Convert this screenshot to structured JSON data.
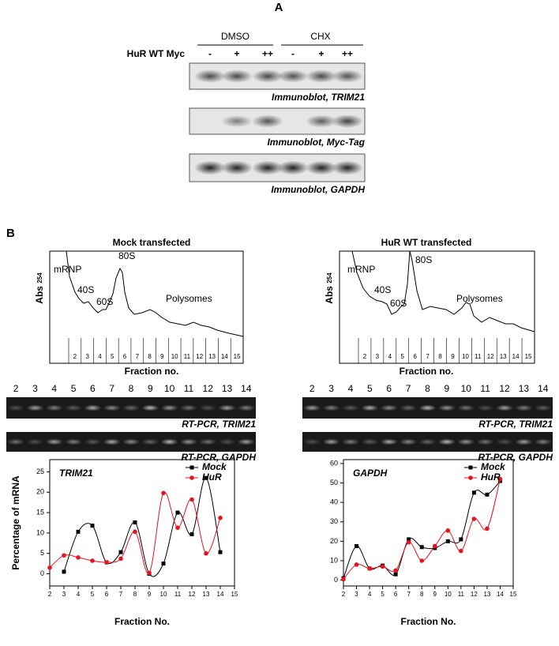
{
  "panel_a": {
    "label": "A",
    "groups": [
      "DMSO",
      "CHX"
    ],
    "row_label": "HuR WT Myc",
    "lanes": [
      "-",
      "+",
      "++",
      "-",
      "+",
      "++"
    ],
    "blots": [
      "Immunoblot, TRIM21",
      "Immunoblot, Myc-Tag",
      "Immunoblot, GAPDH"
    ]
  },
  "panel_b": {
    "label": "B",
    "profiles": [
      {
        "title": "Mock transfected",
        "y_label": "Abs",
        "y_sub": "254",
        "x_label": "Fraction no.",
        "peaks": [
          "mRNP",
          "40S",
          "60S",
          "80S",
          "Polysomes"
        ],
        "fractions": [
          2,
          3,
          4,
          5,
          6,
          7,
          8,
          9,
          10,
          11,
          12,
          13,
          14,
          15
        ]
      },
      {
        "title": "HuR WT transfected",
        "y_label": "Abs",
        "y_sub": "254",
        "x_label": "Fraction no.",
        "peaks": [
          "mRNP",
          "40S",
          "60S",
          "80S",
          "Polysomes"
        ],
        "fractions": [
          2,
          3,
          4,
          5,
          6,
          7,
          8,
          9,
          10,
          11,
          12,
          13,
          14,
          15
        ]
      }
    ],
    "gels": [
      {
        "lanes": [
          2,
          3,
          4,
          5,
          6,
          7,
          8,
          9,
          10,
          11,
          12,
          13,
          14
        ],
        "captions": [
          "RT-PCR, TRIM21",
          "RT-PCR, GAPDH"
        ]
      },
      {
        "lanes": [
          2,
          3,
          4,
          5,
          6,
          7,
          8,
          9,
          10,
          11,
          12,
          13,
          14
        ],
        "captions": [
          "RT-PCR, TRIM21",
          "RT-PCR, GAPDH"
        ]
      }
    ]
  },
  "chart_data": [
    {
      "type": "line",
      "title": "TRIM21",
      "x_label": "Fraction No.",
      "y_label": "Percentage of mRNA",
      "legend": "upper right",
      "x": [
        2,
        3,
        4,
        5,
        6,
        7,
        8,
        9,
        10,
        11,
        12,
        13,
        14
      ],
      "xlim": [
        2,
        15
      ],
      "xticks": [
        2,
        3,
        4,
        5,
        6,
        7,
        8,
        9,
        10,
        11,
        12,
        13,
        14,
        15
      ],
      "ylim": [
        -3,
        28
      ],
      "yticks": [
        0,
        5,
        10,
        15,
        20,
        25
      ],
      "series": [
        {
          "name": "Mock",
          "color": "#000000",
          "marker": "square",
          "values": [
            null,
            0.5,
            10.3,
            11.8,
            2.8,
            5.3,
            12.6,
            0,
            2.5,
            15,
            9.7,
            23.5,
            5.3
          ]
        },
        {
          "name": "HuR",
          "color": "#e8141c",
          "marker": "circle",
          "values": [
            1.5,
            4.5,
            4,
            3.2,
            2.8,
            3.7,
            10.3,
            0.2,
            19.8,
            11.3,
            18.2,
            5,
            13.7
          ]
        }
      ]
    },
    {
      "type": "line",
      "title": "GAPDH",
      "x_label": "Fraction No.",
      "legend": "upper right",
      "x": [
        2,
        3,
        4,
        5,
        6,
        7,
        8,
        9,
        10,
        11,
        12,
        13,
        14
      ],
      "xlim": [
        2,
        15
      ],
      "xticks": [
        2,
        3,
        4,
        5,
        6,
        7,
        8,
        9,
        10,
        11,
        12,
        13,
        14,
        15
      ],
      "ylim": [
        -3,
        62
      ],
      "yticks": [
        0,
        10,
        20,
        30,
        40,
        50,
        60
      ],
      "series": [
        {
          "name": "Mock",
          "color": "#000000",
          "marker": "square",
          "values": [
            1,
            17.5,
            6,
            7.5,
            3,
            21,
            17,
            16.5,
            20,
            21,
            45,
            44,
            51
          ]
        },
        {
          "name": "HuR",
          "color": "#e8141c",
          "marker": "circle",
          "values": [
            0.5,
            8,
            6,
            7,
            5,
            19.5,
            10,
            17.5,
            25.5,
            15,
            31.5,
            26.5,
            52
          ]
        }
      ]
    }
  ]
}
